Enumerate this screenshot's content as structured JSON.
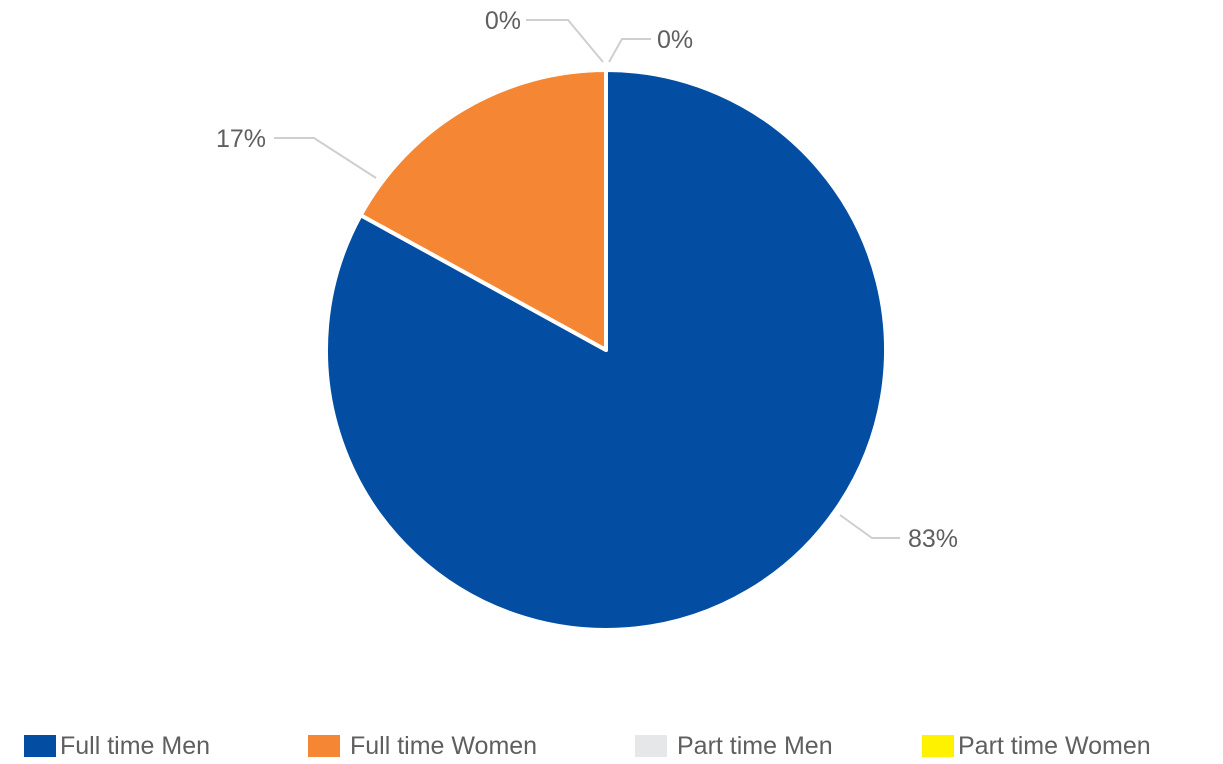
{
  "chart_data": {
    "type": "pie",
    "slices": [
      {
        "label": "Full time Men",
        "value": 83,
        "display": "83%",
        "color": "#034ea2"
      },
      {
        "label": "Full time Women",
        "value": 17,
        "display": "17%",
        "color": "#f58634"
      },
      {
        "label": "Part time Men",
        "value": 0,
        "display": "0%",
        "color": "#e6e7e8"
      },
      {
        "label": "Part time Women",
        "value": 0,
        "display": "0%",
        "color": "#fff200"
      }
    ],
    "legend_position": "bottom",
    "colors": {
      "full_time_men": "#034ea2",
      "full_time_women": "#f58634",
      "part_time_men": "#e6e7e8",
      "part_time_women": "#fff200",
      "leader_line": "#cfcfcf",
      "label_text": "#5f5f5f"
    }
  }
}
